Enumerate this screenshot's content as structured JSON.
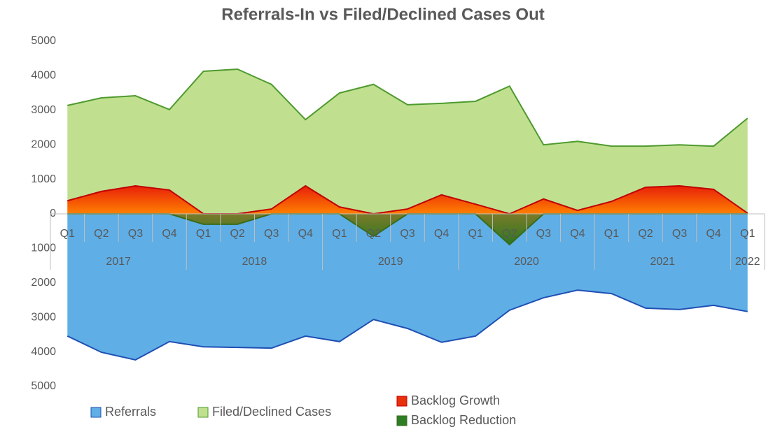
{
  "chart_data": {
    "type": "area",
    "title": "Referrals-In vs Filed/Declined Cases Out",
    "groups": [
      {
        "name": "2017",
        "quarters": [
          "Q1",
          "Q2",
          "Q3",
          "Q4"
        ]
      },
      {
        "name": "2018",
        "quarters": [
          "Q1",
          "Q2",
          "Q3",
          "Q4"
        ]
      },
      {
        "name": "2019",
        "quarters": [
          "Q1",
          "Q2",
          "Q3",
          "Q4"
        ]
      },
      {
        "name": "2020",
        "quarters": [
          "Q1",
          "Q2",
          "Q3",
          "Q4"
        ]
      },
      {
        "name": "2021",
        "quarters": [
          "Q1",
          "Q2",
          "Q3",
          "Q4"
        ]
      },
      {
        "name": "2022",
        "quarters": [
          "Q1"
        ]
      }
    ],
    "series": [
      {
        "name": "Referrals",
        "color": "#5faee6",
        "stroke": "#1f4fb4",
        "values": [
          -3540,
          -4010,
          -4230,
          -3700,
          -3850,
          -3870,
          -3890,
          -3540,
          -3700,
          -3060,
          -3320,
          -3720,
          -3540,
          -2790,
          -2430,
          -2210,
          -2310,
          -2730,
          -2770,
          -2650,
          -2830
        ]
      },
      {
        "name": "Filed/Declined Cases",
        "color": "#c0e090",
        "stroke": "#4e9a2e",
        "values": [
          3140,
          3360,
          3420,
          3020,
          4130,
          4190,
          3750,
          2730,
          3500,
          3750,
          3160,
          3200,
          3260,
          3700,
          2000,
          2100,
          1960,
          1960,
          2000,
          1960,
          2770
        ]
      },
      {
        "name": "Backlog Growth",
        "color": "#e8300a",
        "stroke": "#c00000",
        "values": [
          380,
          650,
          810,
          690,
          0,
          0,
          140,
          810,
          200,
          0,
          140,
          550,
          280,
          0,
          430,
          100,
          360,
          770,
          810,
          710,
          20
        ]
      },
      {
        "name": "Backlog Reduction",
        "color": "#2e7d24",
        "stroke": "#3a6b1a",
        "values": [
          0,
          0,
          0,
          0,
          -300,
          -300,
          0,
          0,
          0,
          -650,
          0,
          0,
          0,
          -890,
          0,
          0,
          0,
          0,
          0,
          0,
          0
        ]
      }
    ],
    "ylim": [
      -5000,
      5000
    ],
    "yticks": [
      {
        "value": -5000,
        "label": "5000"
      },
      {
        "value": -4000,
        "label": "4000"
      },
      {
        "value": -3000,
        "label": "3000"
      },
      {
        "value": -2000,
        "label": "2000"
      },
      {
        "value": -1000,
        "label": "1000"
      },
      0,
      1000,
      2000,
      3000,
      4000,
      5000
    ],
    "grid": false,
    "legend": "bottom"
  }
}
